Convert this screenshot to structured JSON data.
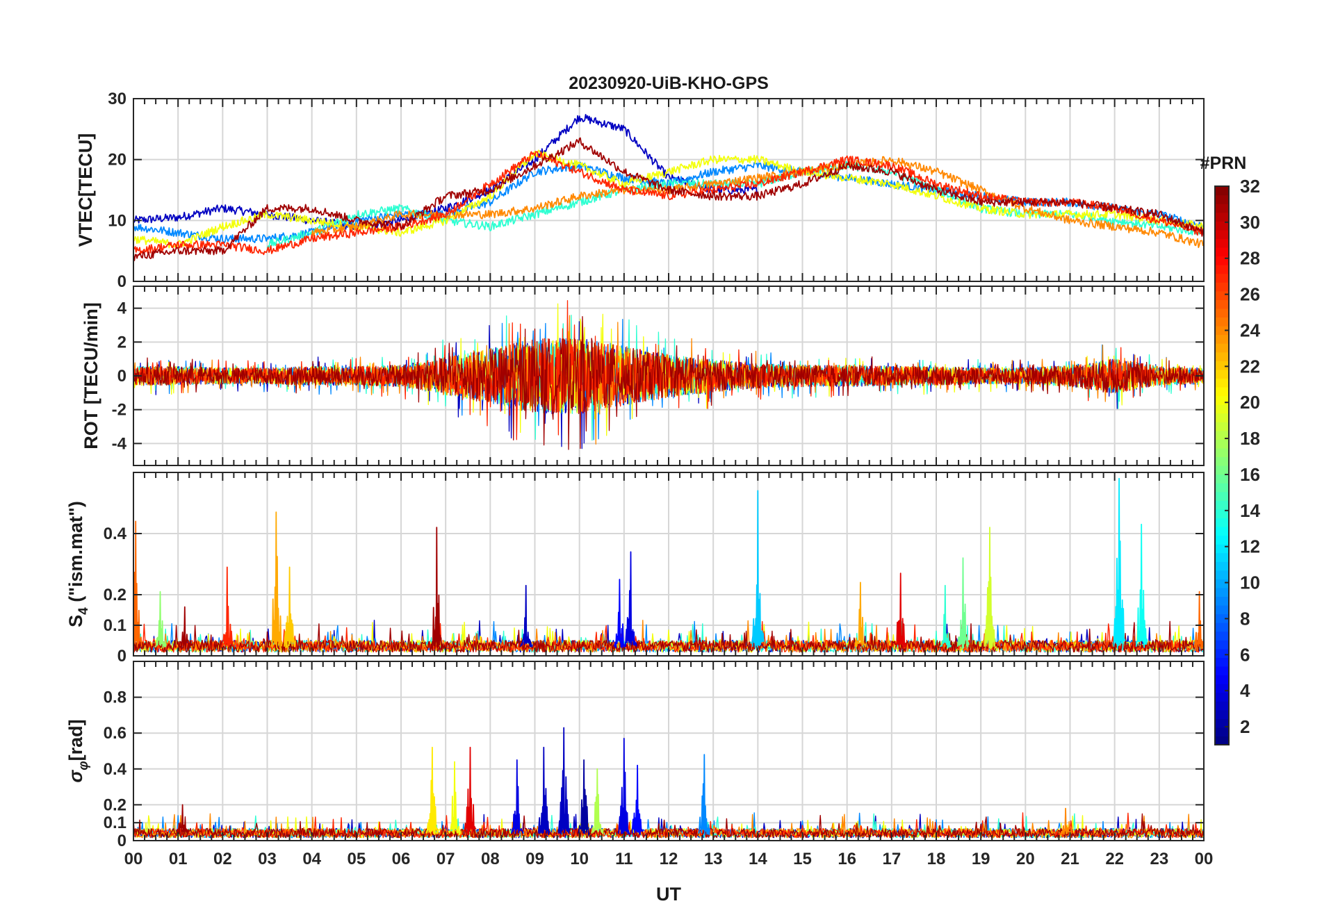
{
  "chart_data": {
    "type": "line",
    "title": "20230920-UiB-KHO-GPS",
    "xlabel": "UT",
    "x_ticks": [
      "00",
      "01",
      "02",
      "03",
      "04",
      "05",
      "06",
      "07",
      "08",
      "09",
      "10",
      "11",
      "12",
      "13",
      "14",
      "15",
      "16",
      "17",
      "18",
      "19",
      "20",
      "21",
      "22",
      "23",
      "00"
    ],
    "xlim": [
      0,
      24
    ],
    "colorbar": {
      "title": "#PRN",
      "range": [
        1,
        32
      ],
      "ticks": [
        "2",
        "4",
        "6",
        "8",
        "10",
        "12",
        "14",
        "16",
        "18",
        "20",
        "22",
        "24",
        "26",
        "28",
        "30",
        "32"
      ],
      "tick_values": [
        2,
        4,
        6,
        8,
        10,
        12,
        14,
        16,
        18,
        20,
        22,
        24,
        26,
        28,
        30,
        32
      ]
    },
    "panels": [
      {
        "id": "vtec",
        "ylabel": "VTEC[TECU]",
        "ylim": [
          0,
          30
        ],
        "y_ticks": [
          0,
          10,
          20,
          30
        ],
        "series": [
          {
            "name": "PRN 3",
            "prn": 3,
            "x": [
              0,
              1,
              2,
              3,
              4,
              5,
              6,
              7,
              8,
              9,
              10,
              11,
              12,
              13,
              14
            ],
            "values": [
              10,
              10.5,
              12,
              11,
              10,
              9,
              10,
              12,
              15,
              20,
              27,
              25,
              17,
              15,
              15
            ]
          },
          {
            "name": "PRN 9",
            "prn": 9,
            "x": [
              0,
              1,
              2,
              3,
              4,
              5,
              6,
              7,
              8,
              9,
              10,
              11,
              12,
              13,
              14,
              15,
              16,
              17,
              18,
              19,
              20,
              21,
              22,
              23,
              24
            ],
            "values": [
              9,
              8,
              7,
              7,
              8,
              10,
              11,
              11,
              13,
              18,
              19,
              17,
              16,
              18,
              19,
              18,
              17,
              16,
              15,
              14,
              13,
              13,
              12,
              11,
              9
            ]
          },
          {
            "name": "PRN 14",
            "prn": 14,
            "x": [
              3,
              4,
              5,
              6,
              7,
              8,
              9,
              10,
              11,
              12,
              13,
              14,
              15,
              16,
              17,
              18,
              19,
              20,
              21,
              22,
              23,
              24
            ],
            "values": [
              6,
              8,
              11,
              12,
              10,
              9,
              11,
              13,
              15,
              16,
              16,
              16,
              18,
              19,
              18,
              15,
              12,
              11,
              11,
              10,
              9,
              8
            ]
          },
          {
            "name": "PRN 20",
            "prn": 20,
            "x": [
              0,
              1,
              2,
              3,
              4,
              5,
              6,
              7,
              8,
              9,
              10,
              11,
              12,
              13,
              14,
              15,
              16,
              17,
              18,
              19,
              20,
              21,
              22,
              23,
              24
            ],
            "values": [
              7,
              6,
              9,
              11,
              10,
              9,
              8,
              10,
              14,
              21,
              19,
              16,
              18,
              20,
              20,
              18,
              17,
              16,
              14,
              12,
              11,
              11,
              11,
              10,
              9
            ]
          },
          {
            "name": "PRN 24",
            "prn": 24,
            "x": [
              4,
              5,
              6,
              7,
              8,
              9,
              10,
              11,
              12,
              13,
              14,
              15,
              16,
              17,
              18,
              19,
              20,
              21,
              22,
              23,
              24
            ],
            "values": [
              8,
              9,
              11,
              11,
              11,
              12,
              14,
              15,
              15,
              16,
              17,
              18,
              19,
              20,
              18,
              15,
              12,
              10,
              9,
              8,
              6
            ]
          },
          {
            "name": "PRN 27",
            "prn": 27,
            "x": [
              0,
              1,
              2,
              3,
              4,
              5,
              6,
              7,
              8,
              9,
              10,
              11,
              12,
              13,
              14,
              15,
              16,
              17,
              18,
              19,
              20,
              21,
              22,
              23,
              24
            ],
            "values": [
              5,
              6,
              6,
              5,
              7,
              8,
              9,
              11,
              16,
              21,
              18,
              15,
              14,
              15,
              16,
              18,
              20,
              19,
              16,
              14,
              13,
              13,
              12,
              10,
              8
            ]
          },
          {
            "name": "PRN 31",
            "prn": 31,
            "x": [
              0,
              1,
              2,
              3,
              4,
              5,
              6,
              7,
              8,
              9,
              10,
              11,
              12,
              13,
              14,
              15,
              16,
              17,
              18,
              19,
              20,
              21,
              22,
              23,
              24
            ],
            "values": [
              4,
              5,
              5,
              12,
              12,
              10,
              9,
              14,
              15,
              19,
              23,
              18,
              15,
              14,
              14,
              16,
              19,
              18,
              15,
              13,
              13,
              13,
              12,
              11,
              8
            ]
          }
        ]
      },
      {
        "id": "rot",
        "ylabel": "ROT [TECU/min]",
        "ylim": [
          -5.3,
          5.3
        ],
        "y_ticks": [
          -4,
          -2,
          0,
          2,
          4
        ],
        "envelope": {
          "x": [
            0,
            1,
            2,
            3,
            4,
            5,
            6,
            7,
            8,
            9,
            10,
            11,
            12,
            13,
            14,
            15,
            16,
            17,
            18,
            19,
            20,
            21,
            22,
            23,
            24
          ],
          "amplitude": [
            0.7,
            0.7,
            0.6,
            0.6,
            0.7,
            0.7,
            0.8,
            1.4,
            2.0,
            2.8,
            2.8,
            2.2,
            1.6,
            1.2,
            0.9,
            0.8,
            0.8,
            0.7,
            0.7,
            0.6,
            0.6,
            0.8,
            1.3,
            0.7,
            0.6
          ]
        },
        "series": [
          {
            "name": "PRN 3",
            "prn": 3
          },
          {
            "name": "PRN 9",
            "prn": 9
          },
          {
            "name": "PRN 14",
            "prn": 14
          },
          {
            "name": "PRN 20",
            "prn": 20
          },
          {
            "name": "PRN 24",
            "prn": 24
          },
          {
            "name": "PRN 27",
            "prn": 27
          },
          {
            "name": "PRN 31",
            "prn": 31
          }
        ]
      },
      {
        "id": "s4",
        "ylabel_main": "S",
        "ylabel_sub": "4",
        "ylabel_rest": " (\"ism.mat\")",
        "ylim": [
          0,
          0.6
        ],
        "y_ticks": [
          0,
          0.1,
          0.2,
          0.4
        ],
        "baseline": 0.03,
        "series": [
          {
            "name": "PRN 3",
            "prn": 3
          },
          {
            "name": "PRN 9",
            "prn": 9
          },
          {
            "name": "PRN 14",
            "prn": 14
          },
          {
            "name": "PRN 20",
            "prn": 20
          },
          {
            "name": "PRN 24",
            "prn": 24
          },
          {
            "name": "PRN 27",
            "prn": 27
          },
          {
            "name": "PRN 31",
            "prn": 31
          }
        ],
        "spikes": [
          {
            "x": 0.05,
            "value": 0.44,
            "prn": 25
          },
          {
            "x": 0.6,
            "value": 0.21,
            "prn": 17
          },
          {
            "x": 1.15,
            "value": 0.16,
            "prn": 31
          },
          {
            "x": 2.1,
            "value": 0.29,
            "prn": 27
          },
          {
            "x": 3.2,
            "value": 0.47,
            "prn": 23
          },
          {
            "x": 3.5,
            "value": 0.29,
            "prn": 22
          },
          {
            "x": 6.8,
            "value": 0.42,
            "prn": 31
          },
          {
            "x": 8.8,
            "value": 0.23,
            "prn": 3
          },
          {
            "x": 10.9,
            "value": 0.25,
            "prn": 5
          },
          {
            "x": 11.15,
            "value": 0.34,
            "prn": 4
          },
          {
            "x": 14.0,
            "value": 0.54,
            "prn": 11
          },
          {
            "x": 16.3,
            "value": 0.24,
            "prn": 23
          },
          {
            "x": 17.2,
            "value": 0.27,
            "prn": 29
          },
          {
            "x": 18.2,
            "value": 0.23,
            "prn": 14
          },
          {
            "x": 18.6,
            "value": 0.32,
            "prn": 16
          },
          {
            "x": 19.2,
            "value": 0.42,
            "prn": 19
          },
          {
            "x": 22.1,
            "value": 0.58,
            "prn": 12
          },
          {
            "x": 22.6,
            "value": 0.43,
            "prn": 13
          },
          {
            "x": 23.9,
            "value": 0.21,
            "prn": 25
          }
        ]
      },
      {
        "id": "sigma_phi",
        "ylabel_main": "σ",
        "ylabel_sub": "φ",
        "ylabel_rest": "[rad]",
        "ylim": [
          0,
          1.0
        ],
        "y_ticks": [
          0,
          0.1,
          0.2,
          0.4,
          0.6,
          0.8
        ],
        "baseline": 0.04,
        "series": [
          {
            "name": "PRN 3",
            "prn": 3
          },
          {
            "name": "PRN 9",
            "prn": 9
          },
          {
            "name": "PRN 14",
            "prn": 14
          },
          {
            "name": "PRN 20",
            "prn": 20
          },
          {
            "name": "PRN 24",
            "prn": 24
          },
          {
            "name": "PRN 27",
            "prn": 27
          },
          {
            "name": "PRN 31",
            "prn": 31
          }
        ],
        "spikes": [
          {
            "x": 1.1,
            "value": 0.2,
            "prn": 31
          },
          {
            "x": 6.7,
            "value": 0.52,
            "prn": 21
          },
          {
            "x": 7.2,
            "value": 0.44,
            "prn": 20
          },
          {
            "x": 7.55,
            "value": 0.52,
            "prn": 29
          },
          {
            "x": 8.6,
            "value": 0.45,
            "prn": 4
          },
          {
            "x": 9.2,
            "value": 0.52,
            "prn": 3
          },
          {
            "x": 9.65,
            "value": 0.63,
            "prn": 3
          },
          {
            "x": 10.1,
            "value": 0.45,
            "prn": 2
          },
          {
            "x": 10.4,
            "value": 0.4,
            "prn": 18
          },
          {
            "x": 11.0,
            "value": 0.57,
            "prn": 4
          },
          {
            "x": 11.3,
            "value": 0.42,
            "prn": 5
          },
          {
            "x": 12.8,
            "value": 0.48,
            "prn": 9
          },
          {
            "x": 20.9,
            "value": 0.18,
            "prn": 24
          }
        ]
      }
    ]
  }
}
